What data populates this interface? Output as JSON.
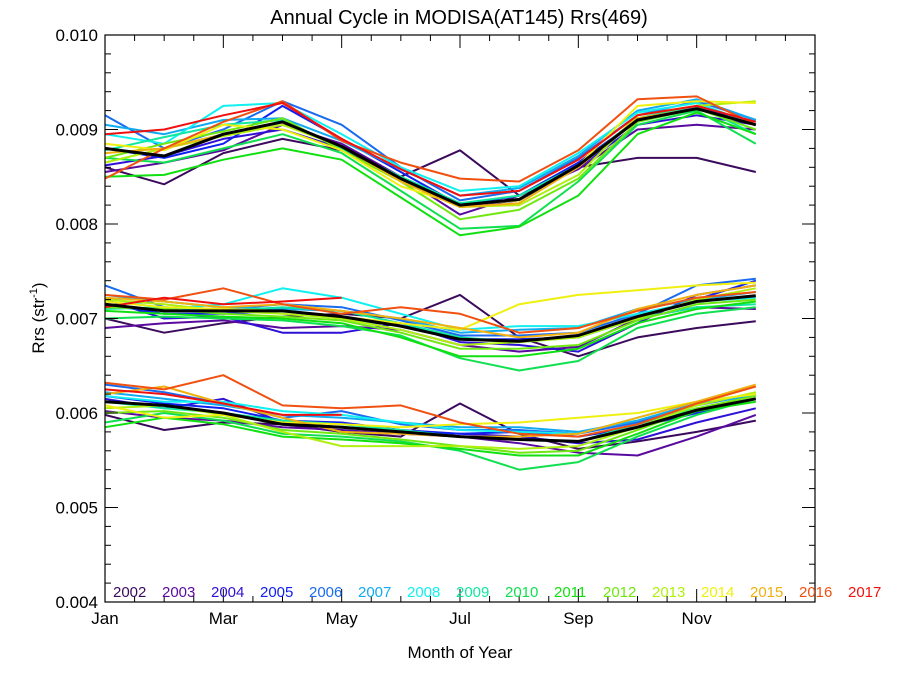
{
  "chart_data": {
    "type": "line",
    "title": "Annual Cycle in MODISA(AT145) Rrs(469)",
    "xlabel": "Month of Year",
    "ylabel": "Rrs (str",
    "ylabel_exp": "-1",
    "ylabel_end": ")",
    "xlim": [
      1,
      13
    ],
    "ylim": [
      0.004,
      0.01
    ],
    "x_ticks": [
      {
        "value": 1,
        "label": "Jan"
      },
      {
        "value": 3,
        "label": "Mar"
      },
      {
        "value": 5,
        "label": "May"
      },
      {
        "value": 7,
        "label": "Jul"
      },
      {
        "value": 9,
        "label": "Sep"
      },
      {
        "value": 11,
        "label": "Nov"
      }
    ],
    "y_ticks": [
      {
        "value": 0.004,
        "label": "0.004"
      },
      {
        "value": 0.005,
        "label": "0.005"
      },
      {
        "value": 0.006,
        "label": "0.006"
      },
      {
        "value": 0.007,
        "label": "0.007"
      },
      {
        "value": 0.008,
        "label": "0.008"
      },
      {
        "value": 0.009,
        "label": "0.009"
      },
      {
        "value": 0.01,
        "label": "0.010"
      }
    ],
    "grid": false,
    "legend_placement": "bottom",
    "x": [
      1,
      2,
      3,
      4,
      5,
      6,
      7,
      8,
      9,
      10,
      11,
      12
    ],
    "series": [
      {
        "name": "2002",
        "color": "#3b0a5c"
      },
      {
        "name": "2003",
        "color": "#5a0a9e"
      },
      {
        "name": "2004",
        "color": "#2f10d6"
      },
      {
        "name": "2005",
        "color": "#1020f0"
      },
      {
        "name": "2006",
        "color": "#1a6bf0"
      },
      {
        "name": "2007",
        "color": "#10aaf0"
      },
      {
        "name": "2008",
        "color": "#10f0f0"
      },
      {
        "name": "2009",
        "color": "#10e8a0"
      },
      {
        "name": "2010",
        "color": "#10e050"
      },
      {
        "name": "2011",
        "color": "#10e010"
      },
      {
        "name": "2012",
        "color": "#70e810"
      },
      {
        "name": "2013",
        "color": "#b0f010"
      },
      {
        "name": "2014",
        "color": "#f0f010"
      },
      {
        "name": "2015",
        "color": "#f0b010"
      },
      {
        "name": "2016",
        "color": "#f05010"
      },
      {
        "name": "2017",
        "color": "#f01010"
      }
    ],
    "band_lines": [
      {
        "series": 0,
        "values": [
          0.0086,
          0.00842,
          0.00875,
          0.0089,
          0.00878,
          0.0085,
          0.00878,
          0.0083,
          0.0086,
          0.0087,
          0.0087,
          0.00855
        ]
      },
      {
        "series": 1,
        "values": [
          0.00855,
          0.00865,
          0.00878,
          0.00905,
          0.00885,
          0.0085,
          0.0081,
          0.0083,
          0.00858,
          0.009,
          0.00905,
          0.009
        ]
      },
      {
        "series": 2,
        "values": [
          0.00862,
          0.00872,
          0.0089,
          0.009,
          0.0088,
          0.0085,
          0.00818,
          0.00825,
          0.0086,
          0.00905,
          0.00915,
          0.00905
        ]
      },
      {
        "series": 3,
        "values": [
          0.0088,
          0.0087,
          0.00885,
          0.00925,
          0.0089,
          0.00855,
          0.0082,
          0.0083,
          0.00865,
          0.0091,
          0.00925,
          0.00905
        ]
      },
      {
        "series": 4,
        "values": [
          0.00915,
          0.0088,
          0.009,
          0.0093,
          0.00905,
          0.0086,
          0.00825,
          0.00835,
          0.0087,
          0.00915,
          0.0093,
          0.0091
        ]
      },
      {
        "series": 5,
        "values": [
          0.00905,
          0.00895,
          0.0091,
          0.00912,
          0.00888,
          0.00858,
          0.0083,
          0.00838,
          0.00872,
          0.0092,
          0.00932,
          0.0091
        ]
      },
      {
        "series": 6,
        "values": [
          0.00895,
          0.00885,
          0.00925,
          0.00928,
          0.00895,
          0.0086,
          0.00835,
          0.0084,
          0.00875,
          0.00918,
          0.00928,
          0.00905
        ]
      },
      {
        "series": 7,
        "values": [
          0.00878,
          0.00892,
          0.00905,
          0.0091,
          0.0088,
          0.0085,
          0.00822,
          0.0083,
          0.00862,
          0.00912,
          0.00925,
          0.00895
        ]
      },
      {
        "series": 8,
        "values": [
          0.0087,
          0.00865,
          0.0088,
          0.00895,
          0.00875,
          0.00835,
          0.00795,
          0.00798,
          0.00845,
          0.00905,
          0.0092,
          0.00885
        ]
      },
      {
        "series": 9,
        "values": [
          0.0085,
          0.00852,
          0.00868,
          0.0088,
          0.00868,
          0.00828,
          0.00788,
          0.00797,
          0.0083,
          0.00895,
          0.00918,
          0.00895
        ]
      },
      {
        "series": 10,
        "values": [
          0.0087,
          0.00885,
          0.00898,
          0.00912,
          0.00878,
          0.00845,
          0.00805,
          0.00815,
          0.00848,
          0.00908,
          0.00922,
          0.009
        ]
      },
      {
        "series": 11,
        "values": [
          0.00865,
          0.0088,
          0.00893,
          0.00905,
          0.00882,
          0.00845,
          0.00818,
          0.0082,
          0.00852,
          0.00915,
          0.00925,
          0.0093
        ]
      },
      {
        "series": 12,
        "values": [
          0.00885,
          0.00878,
          0.00905,
          0.009,
          0.00878,
          0.0084,
          0.0082,
          0.00825,
          0.00862,
          0.00925,
          0.0093,
          0.00928
        ]
      },
      {
        "series": 13,
        "values": [
          0.00875,
          0.0088,
          0.00895,
          0.00908,
          0.00882,
          0.00845,
          0.00818,
          0.00822,
          0.0086,
          0.00912,
          0.00922,
          0.00905
        ]
      },
      {
        "series": 14,
        "values": [
          0.00848,
          0.0088,
          0.00908,
          0.0093,
          0.00888,
          0.00865,
          0.00848,
          0.00845,
          0.00878,
          0.00932,
          0.00935,
          0.00905
        ]
      },
      {
        "series": 15,
        "values": [
          0.00895,
          0.009,
          0.00915,
          0.00928,
          0.0089,
          0.00858,
          0.0083,
          0.00835,
          0.00868,
          0.00915,
          0.00925,
          0.00908
        ]
      },
      {
        "mean": true,
        "values": [
          0.0088,
          0.00872,
          0.00895,
          0.00908,
          0.00882,
          0.00848,
          0.0082,
          0.00826,
          0.00862,
          0.0091,
          0.00922,
          0.00905
        ]
      },
      {
        "series": 0,
        "values": [
          0.007,
          0.00685,
          0.00695,
          0.00702,
          0.00705,
          0.007,
          0.00725,
          0.0068,
          0.0066,
          0.0068,
          0.0069,
          0.00697
        ]
      },
      {
        "series": 1,
        "values": [
          0.0069,
          0.00695,
          0.00698,
          0.0069,
          0.00692,
          0.00688,
          0.00672,
          0.00665,
          0.0067,
          0.007,
          0.00712,
          0.0071
        ]
      },
      {
        "series": 2,
        "values": [
          0.0072,
          0.007,
          0.00702,
          0.00685,
          0.00685,
          0.00695,
          0.00675,
          0.00672,
          0.00665,
          0.00695,
          0.00725,
          0.00735
        ]
      },
      {
        "series": 3,
        "values": [
          0.00715,
          0.00705,
          0.00705,
          0.00708,
          0.007,
          0.00692,
          0.00678,
          0.00678,
          0.0068,
          0.007,
          0.0072,
          0.0074
        ]
      },
      {
        "series": 4,
        "values": [
          0.00735,
          0.00712,
          0.0071,
          0.00715,
          0.00712,
          0.00698,
          0.00682,
          0.00682,
          0.00685,
          0.00705,
          0.00735,
          0.00742
        ]
      },
      {
        "series": 5,
        "values": [
          0.00725,
          0.00718,
          0.00712,
          0.0071,
          0.00708,
          0.007,
          0.00685,
          0.00688,
          0.0069,
          0.0071,
          0.0072,
          0.00728
        ]
      },
      {
        "series": 6,
        "values": [
          0.00722,
          0.0071,
          0.00715,
          0.00732,
          0.00722,
          0.00705,
          0.00688,
          0.00692,
          0.00692,
          0.00705,
          0.00718,
          0.00722
        ]
      },
      {
        "series": 7,
        "values": [
          0.0071,
          0.00712,
          0.00708,
          0.00712,
          0.00708,
          0.00695,
          0.0068,
          0.00675,
          0.0068,
          0.007,
          0.00712,
          0.00715
        ]
      },
      {
        "series": 8,
        "values": [
          0.007,
          0.00702,
          0.007,
          0.00698,
          0.00692,
          0.00682,
          0.00658,
          0.00645,
          0.00655,
          0.0069,
          0.00705,
          0.00712
        ]
      },
      {
        "series": 9,
        "values": [
          0.00708,
          0.00705,
          0.00702,
          0.007,
          0.00695,
          0.0068,
          0.0066,
          0.0066,
          0.00668,
          0.00695,
          0.0071,
          0.00718
        ]
      },
      {
        "series": 10,
        "values": [
          0.00712,
          0.0071,
          0.00705,
          0.00702,
          0.00698,
          0.00685,
          0.00668,
          0.00668,
          0.00672,
          0.00698,
          0.00715,
          0.0072
        ]
      },
      {
        "series": 11,
        "values": [
          0.0072,
          0.00715,
          0.00708,
          0.00705,
          0.007,
          0.00688,
          0.00672,
          0.00675,
          0.0068,
          0.007,
          0.0072,
          0.00732
        ]
      },
      {
        "series": 12,
        "values": [
          0.00718,
          0.00712,
          0.0071,
          0.00708,
          0.00702,
          0.00695,
          0.00688,
          0.00715,
          0.00725,
          0.0073,
          0.00735,
          0.00738
        ]
      },
      {
        "series": 13,
        "values": [
          0.00722,
          0.00718,
          0.00712,
          0.00715,
          0.00708,
          0.007,
          0.0069,
          0.0068,
          0.00685,
          0.0071,
          0.00725,
          0.00735
        ]
      },
      {
        "series": 14,
        "values": [
          0.00725,
          0.0072,
          0.00732,
          0.00715,
          0.00705,
          0.00712,
          0.00705,
          0.00685,
          0.0069,
          0.00708,
          0.00722,
          0.00728
        ]
      },
      {
        "series": 15,
        "values": [
          0.00712,
          0.00722,
          0.00715,
          0.00718,
          0.00722,
          null,
          null,
          null,
          null,
          null,
          null,
          null
        ]
      },
      {
        "mean": true,
        "values": [
          0.00715,
          0.00708,
          0.00708,
          0.00708,
          0.00702,
          0.00692,
          0.00678,
          0.00676,
          0.00682,
          0.00702,
          0.00718,
          0.00724
        ]
      },
      {
        "series": 0,
        "values": [
          0.00598,
          0.00582,
          0.0059,
          0.00588,
          0.0058,
          0.00575,
          0.0061,
          0.00578,
          0.00562,
          0.0057,
          0.0058,
          0.00592
        ]
      },
      {
        "series": 1,
        "values": [
          0.00602,
          0.00595,
          0.00592,
          0.00585,
          0.00582,
          0.00578,
          0.00575,
          0.00568,
          0.00558,
          0.00555,
          0.00575,
          0.00598
        ]
      },
      {
        "series": 2,
        "values": [
          0.00615,
          0.00605,
          0.00615,
          0.0059,
          0.00585,
          0.0058,
          0.00578,
          0.00575,
          0.00568,
          0.00572,
          0.0059,
          0.00605
        ]
      },
      {
        "series": 3,
        "values": [
          0.00618,
          0.0061,
          0.00605,
          0.00592,
          0.0059,
          0.00582,
          0.00578,
          0.0058,
          0.00575,
          0.00585,
          0.006,
          0.00615
        ]
      },
      {
        "series": 4,
        "values": [
          0.0063,
          0.00622,
          0.0061,
          0.00595,
          0.00602,
          0.00588,
          0.00582,
          0.00582,
          0.00578,
          0.0059,
          0.00608,
          0.0062
        ]
      },
      {
        "series": 5,
        "values": [
          0.00622,
          0.00615,
          0.00608,
          0.00598,
          0.00595,
          0.0059,
          0.00585,
          0.00585,
          0.0058,
          0.00592,
          0.0061,
          0.00618
        ]
      },
      {
        "series": 6,
        "values": [
          0.00618,
          0.00612,
          0.00612,
          0.00602,
          0.00598,
          0.0059,
          0.00582,
          0.0058,
          0.00578,
          0.00595,
          0.00612,
          0.0062
        ]
      },
      {
        "series": 7,
        "values": [
          0.00612,
          0.00605,
          0.006,
          0.00592,
          0.00588,
          0.00582,
          0.00575,
          0.00572,
          0.0057,
          0.00588,
          0.00605,
          0.00615
        ]
      },
      {
        "series": 8,
        "values": [
          0.0059,
          0.006,
          0.00592,
          0.00578,
          0.00575,
          0.0057,
          0.0056,
          0.0054,
          0.00548,
          0.00575,
          0.00598,
          0.00615
        ]
      },
      {
        "series": 9,
        "values": [
          0.00585,
          0.00595,
          0.00588,
          0.00575,
          0.00572,
          0.00568,
          0.00562,
          0.00555,
          0.00555,
          0.00578,
          0.00602,
          0.00612
        ]
      },
      {
        "series": 10,
        "values": [
          0.006,
          0.00602,
          0.00595,
          0.00582,
          0.00578,
          0.00572,
          0.00565,
          0.00558,
          0.0056,
          0.00582,
          0.00605,
          0.00618
        ]
      },
      {
        "series": 11,
        "values": [
          0.00605,
          0.00608,
          0.00598,
          0.0058,
          0.00565,
          0.00565,
          0.00565,
          0.00562,
          0.00565,
          0.00585,
          0.00608,
          0.00622
        ]
      },
      {
        "series": 12,
        "values": [
          0.00608,
          0.00595,
          0.00598,
          0.0059,
          0.00588,
          0.00585,
          0.00588,
          0.0059,
          0.00595,
          0.006,
          0.00612,
          0.0062
        ]
      },
      {
        "series": 13,
        "values": [
          0.0062,
          0.00628,
          0.0061,
          0.00595,
          0.0058,
          0.00578,
          0.00575,
          0.00575,
          0.00578,
          0.00595,
          0.00612,
          0.0063
        ]
      },
      {
        "series": 14,
        "values": [
          0.00632,
          0.00625,
          0.0064,
          0.00608,
          0.00605,
          0.00608,
          0.0059,
          0.00578,
          0.00575,
          0.00588,
          0.0061,
          0.00628
        ]
      },
      {
        "series": 15,
        "values": [
          0.00625,
          0.0062,
          0.0061,
          0.00598,
          0.00598,
          null,
          null,
          null,
          null,
          null,
          null,
          null
        ]
      },
      {
        "mean": true,
        "values": [
          0.00612,
          0.00608,
          0.006,
          0.00588,
          0.00585,
          0.0058,
          0.00575,
          0.00572,
          0.0057,
          0.00585,
          0.00603,
          0.00615
        ]
      }
    ]
  }
}
